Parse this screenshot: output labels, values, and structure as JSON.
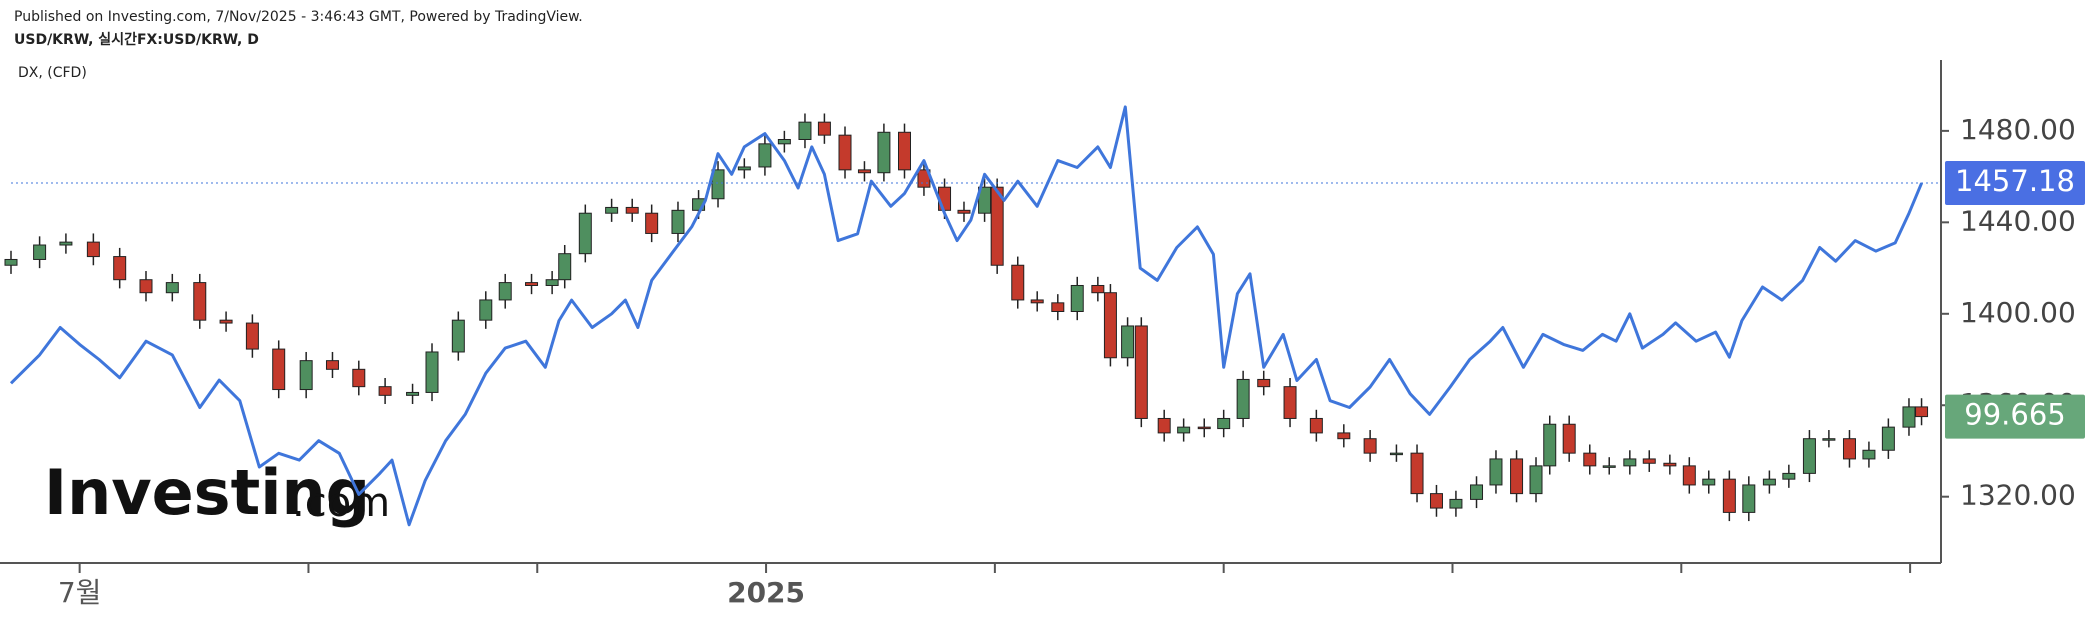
{
  "header": {
    "published": "Published on Investing.com, 7/Nov/2025 - 3:46:43 GMT, Powered by TradingView.",
    "watermark": "Investing",
    "watermark_suffix": ".com"
  },
  "chart_data": {
    "type": "candlestick",
    "xlim": [
      6.4,
      23.27
    ],
    "xticks": [
      {
        "value": 7,
        "label": "7월"
      },
      {
        "value": 9,
        "label": null
      },
      {
        "value": 11,
        "label": null
      },
      {
        "value": 13,
        "label": "2025"
      },
      {
        "value": 15,
        "label": null
      },
      {
        "value": 17,
        "label": null
      },
      {
        "value": 19,
        "label": null
      },
      {
        "value": 21,
        "label": null
      },
      {
        "value": 23,
        "label": null
      }
    ],
    "ylim": [
      1291,
      1511
    ],
    "yticks": [
      {
        "value": 1320,
        "label": "1320.00"
      },
      {
        "value": 1360,
        "label": "1360.00"
      },
      {
        "value": 1400,
        "label": "1400.00"
      },
      {
        "value": 1440,
        "label": "1440.00"
      },
      {
        "value": 1480,
        "label": "1480.00"
      }
    ],
    "y2lim": [
      94.6,
      112.0
    ],
    "series": [
      {
        "name": "USD/KRW, 실시간FX:USD/KRW, D",
        "type": "line",
        "color": "#3f76db",
        "last_color": "#4a6fe3",
        "x": [
          6.4,
          6.65,
          6.83,
          7.0,
          7.17,
          7.35,
          7.58,
          7.81,
          8.05,
          8.22,
          8.4,
          8.57,
          8.74,
          8.92,
          9.09,
          9.27,
          9.44,
          9.62,
          9.73,
          9.88,
          10.02,
          10.2,
          10.37,
          10.55,
          10.72,
          10.9,
          11.07,
          11.19,
          11.3,
          11.48,
          11.65,
          11.77,
          11.88,
          12.0,
          12.17,
          12.35,
          12.47,
          12.58,
          12.7,
          12.81,
          12.99,
          13.16,
          13.28,
          13.4,
          13.51,
          13.63,
          13.8,
          13.92,
          14.09,
          14.21,
          14.38,
          14.56,
          14.67,
          14.79,
          14.91,
          15.08,
          15.2,
          15.37,
          15.55,
          15.72,
          15.9,
          16.01,
          16.14,
          16.27,
          16.42,
          16.59,
          16.77,
          16.91,
          17.0,
          17.12,
          17.23,
          17.35,
          17.52,
          17.64,
          17.81,
          17.93,
          18.1,
          18.28,
          18.45,
          18.63,
          18.8,
          18.98,
          19.15,
          19.33,
          19.44,
          19.62,
          19.79,
          19.97,
          20.14,
          20.31,
          20.43,
          20.55,
          20.66,
          20.84,
          20.95,
          21.13,
          21.3,
          21.42,
          21.53,
          21.71,
          21.88,
          22.06,
          22.21,
          22.35,
          22.52,
          22.7,
          22.87,
          22.99,
          23.1
        ],
        "values": [
          1369.6,
          1382,
          1394,
          1386.6,
          1380,
          1372,
          1388,
          1382,
          1359,
          1371,
          1362,
          1333,
          1339,
          1336,
          1344.5,
          1339,
          1321,
          1330,
          1336,
          1307.7,
          1327,
          1344.5,
          1356,
          1374,
          1385,
          1388,
          1376.6,
          1397,
          1406,
          1394,
          1400,
          1406,
          1394,
          1414.6,
          1426,
          1438,
          1449.6,
          1470,
          1461,
          1473,
          1478.8,
          1467,
          1455,
          1473,
          1461,
          1432,
          1435,
          1458,
          1447,
          1452.6,
          1467,
          1444,
          1432,
          1441,
          1461,
          1449.6,
          1458,
          1447,
          1467,
          1464,
          1473,
          1464,
          1490.5,
          1420,
          1414.6,
          1429,
          1438,
          1426,
          1376.6,
          1408.8,
          1417.5,
          1376.6,
          1391,
          1370.8,
          1380,
          1362,
          1359,
          1368,
          1380,
          1365,
          1356,
          1368,
          1380,
          1388,
          1394,
          1376.6,
          1391,
          1386.6,
          1384,
          1391,
          1388,
          1400,
          1385,
          1391,
          1396,
          1388,
          1392,
          1381,
          1397,
          1411.7,
          1406,
          1414.6,
          1429,
          1423,
          1432,
          1427.4,
          1431,
          1444,
          1457.18
        ]
      },
      {
        "name": "DX,  (CFD)",
        "type": "candlestick",
        "axis": "y2",
        "up_color": "#4f8f5f",
        "down_color": "#c43a2c",
        "last_color": "#67a77a",
        "x": [
          6.4,
          6.65,
          6.88,
          7.12,
          7.35,
          7.58,
          7.81,
          8.05,
          8.28,
          8.51,
          8.74,
          8.98,
          9.21,
          9.44,
          9.67,
          9.91,
          10.08,
          10.31,
          10.55,
          10.72,
          10.95,
          11.13,
          11.24,
          11.42,
          11.65,
          11.83,
          12.0,
          12.23,
          12.41,
          12.58,
          12.81,
          12.99,
          13.16,
          13.34,
          13.51,
          13.69,
          13.86,
          14.03,
          14.21,
          14.38,
          14.56,
          14.73,
          14.91,
          15.02,
          15.2,
          15.37,
          15.55,
          15.72,
          15.9,
          16.01,
          16.16,
          16.28,
          16.48,
          16.65,
          16.83,
          17.0,
          17.17,
          17.35,
          17.58,
          17.81,
          18.05,
          18.28,
          18.51,
          18.69,
          18.86,
          19.03,
          19.21,
          19.38,
          19.56,
          19.73,
          19.85,
          20.02,
          20.2,
          20.37,
          20.55,
          20.72,
          20.9,
          21.07,
          21.24,
          21.42,
          21.59,
          21.77,
          21.94,
          22.12,
          22.29,
          22.47,
          22.64,
          22.81,
          22.99,
          23.1
        ],
        "open": [
          104.9,
          105.1,
          105.6,
          105.7,
          105.2,
          104.4,
          103.95,
          104.3,
          103.0,
          102.9,
          102.0,
          100.6,
          101.6,
          101.3,
          100.7,
          100.4,
          100.5,
          101.9,
          103.0,
          103.7,
          104.3,
          104.2,
          104.4,
          105.3,
          106.7,
          106.9,
          106.7,
          106.0,
          106.8,
          107.2,
          108.2,
          108.3,
          109.1,
          109.25,
          109.85,
          109.4,
          108.2,
          108.1,
          109.5,
          108.2,
          107.6,
          106.8,
          106.7,
          107.6,
          104.9,
          103.7,
          103.6,
          103.3,
          104.2,
          103.95,
          101.7,
          102.8,
          99.6,
          99.1,
          99.3,
          99.25,
          99.6,
          100.95,
          100.7,
          99.6,
          99.1,
          98.9,
          98.4,
          98.4,
          97.0,
          96.5,
          96.8,
          97.3,
          98.2,
          97.0,
          97.96,
          99.4,
          98.4,
          97.96,
          97.96,
          98.2,
          98.05,
          97.96,
          97.3,
          97.5,
          96.35,
          97.3,
          97.5,
          97.7,
          98.9,
          98.9,
          98.2,
          98.5,
          99.3,
          100.0
        ],
        "high": [
          105.4,
          105.9,
          106.0,
          106.0,
          105.5,
          104.7,
          104.6,
          104.6,
          103.3,
          103.2,
          102.3,
          101.9,
          101.9,
          101.6,
          101.0,
          100.8,
          102.2,
          103.3,
          104.0,
          104.6,
          104.6,
          104.7,
          105.6,
          107.0,
          107.2,
          107.2,
          107.0,
          107.1,
          107.5,
          108.5,
          108.6,
          109.4,
          109.55,
          110.15,
          110.15,
          109.7,
          108.5,
          109.8,
          109.8,
          108.5,
          107.9,
          107.1,
          107.9,
          107.9,
          105.2,
          104.0,
          103.9,
          104.5,
          104.5,
          104.25,
          103.1,
          103.1,
          99.9,
          99.6,
          99.6,
          99.9,
          101.25,
          101.25,
          101.0,
          99.9,
          99.4,
          99.2,
          98.7,
          98.7,
          97.3,
          97.1,
          97.6,
          98.5,
          98.5,
          98.26,
          99.7,
          99.7,
          98.7,
          98.26,
          98.5,
          98.5,
          98.35,
          98.26,
          97.8,
          97.8,
          97.6,
          97.8,
          98.0,
          99.2,
          99.2,
          99.2,
          98.8,
          99.6,
          100.3,
          100.3
        ],
        "low": [
          104.6,
          104.8,
          105.3,
          104.9,
          104.1,
          103.65,
          103.65,
          102.7,
          102.6,
          101.7,
          100.3,
          100.3,
          101.0,
          100.4,
          100.1,
          100.1,
          100.2,
          101.6,
          102.7,
          103.4,
          103.9,
          103.9,
          104.1,
          105.0,
          106.4,
          106.4,
          105.7,
          105.7,
          106.5,
          106.9,
          107.9,
          108.0,
          108.8,
          108.95,
          109.1,
          107.9,
          107.8,
          107.8,
          107.9,
          107.3,
          106.5,
          106.4,
          106.4,
          104.6,
          103.4,
          103.3,
          103.0,
          103.0,
          103.65,
          101.4,
          101.4,
          99.3,
          98.8,
          98.8,
          98.95,
          98.95,
          99.3,
          100.4,
          99.3,
          98.8,
          98.6,
          98.1,
          98.1,
          96.7,
          96.2,
          96.2,
          96.5,
          97.0,
          96.7,
          96.7,
          97.66,
          98.1,
          97.66,
          97.66,
          97.66,
          97.75,
          97.66,
          97.0,
          97.0,
          96.05,
          96.05,
          97.0,
          97.2,
          97.4,
          98.6,
          97.9,
          97.9,
          98.2,
          99.0,
          99.365
        ],
        "close": [
          105.1,
          105.6,
          105.7,
          105.2,
          104.4,
          103.95,
          104.3,
          103.0,
          102.9,
          102.0,
          100.6,
          101.6,
          101.3,
          100.7,
          100.4,
          100.5,
          101.9,
          103.0,
          103.7,
          104.3,
          104.2,
          104.4,
          105.3,
          106.7,
          106.9,
          106.7,
          106.0,
          106.8,
          107.2,
          108.2,
          108.3,
          109.1,
          109.25,
          109.85,
          109.4,
          108.2,
          108.1,
          109.5,
          108.2,
          107.6,
          106.8,
          106.7,
          107.6,
          104.9,
          103.7,
          103.6,
          103.3,
          104.2,
          103.95,
          101.7,
          102.8,
          99.6,
          99.1,
          99.3,
          99.25,
          99.6,
          100.95,
          100.7,
          99.6,
          99.1,
          98.9,
          98.4,
          98.4,
          97.0,
          96.5,
          96.8,
          97.3,
          98.2,
          97.0,
          97.96,
          99.4,
          98.4,
          97.96,
          97.96,
          98.2,
          98.05,
          97.96,
          97.3,
          97.5,
          96.35,
          97.3,
          97.5,
          97.7,
          98.9,
          98.9,
          98.2,
          98.5,
          99.3,
          100.0,
          99.665
        ]
      }
    ]
  }
}
